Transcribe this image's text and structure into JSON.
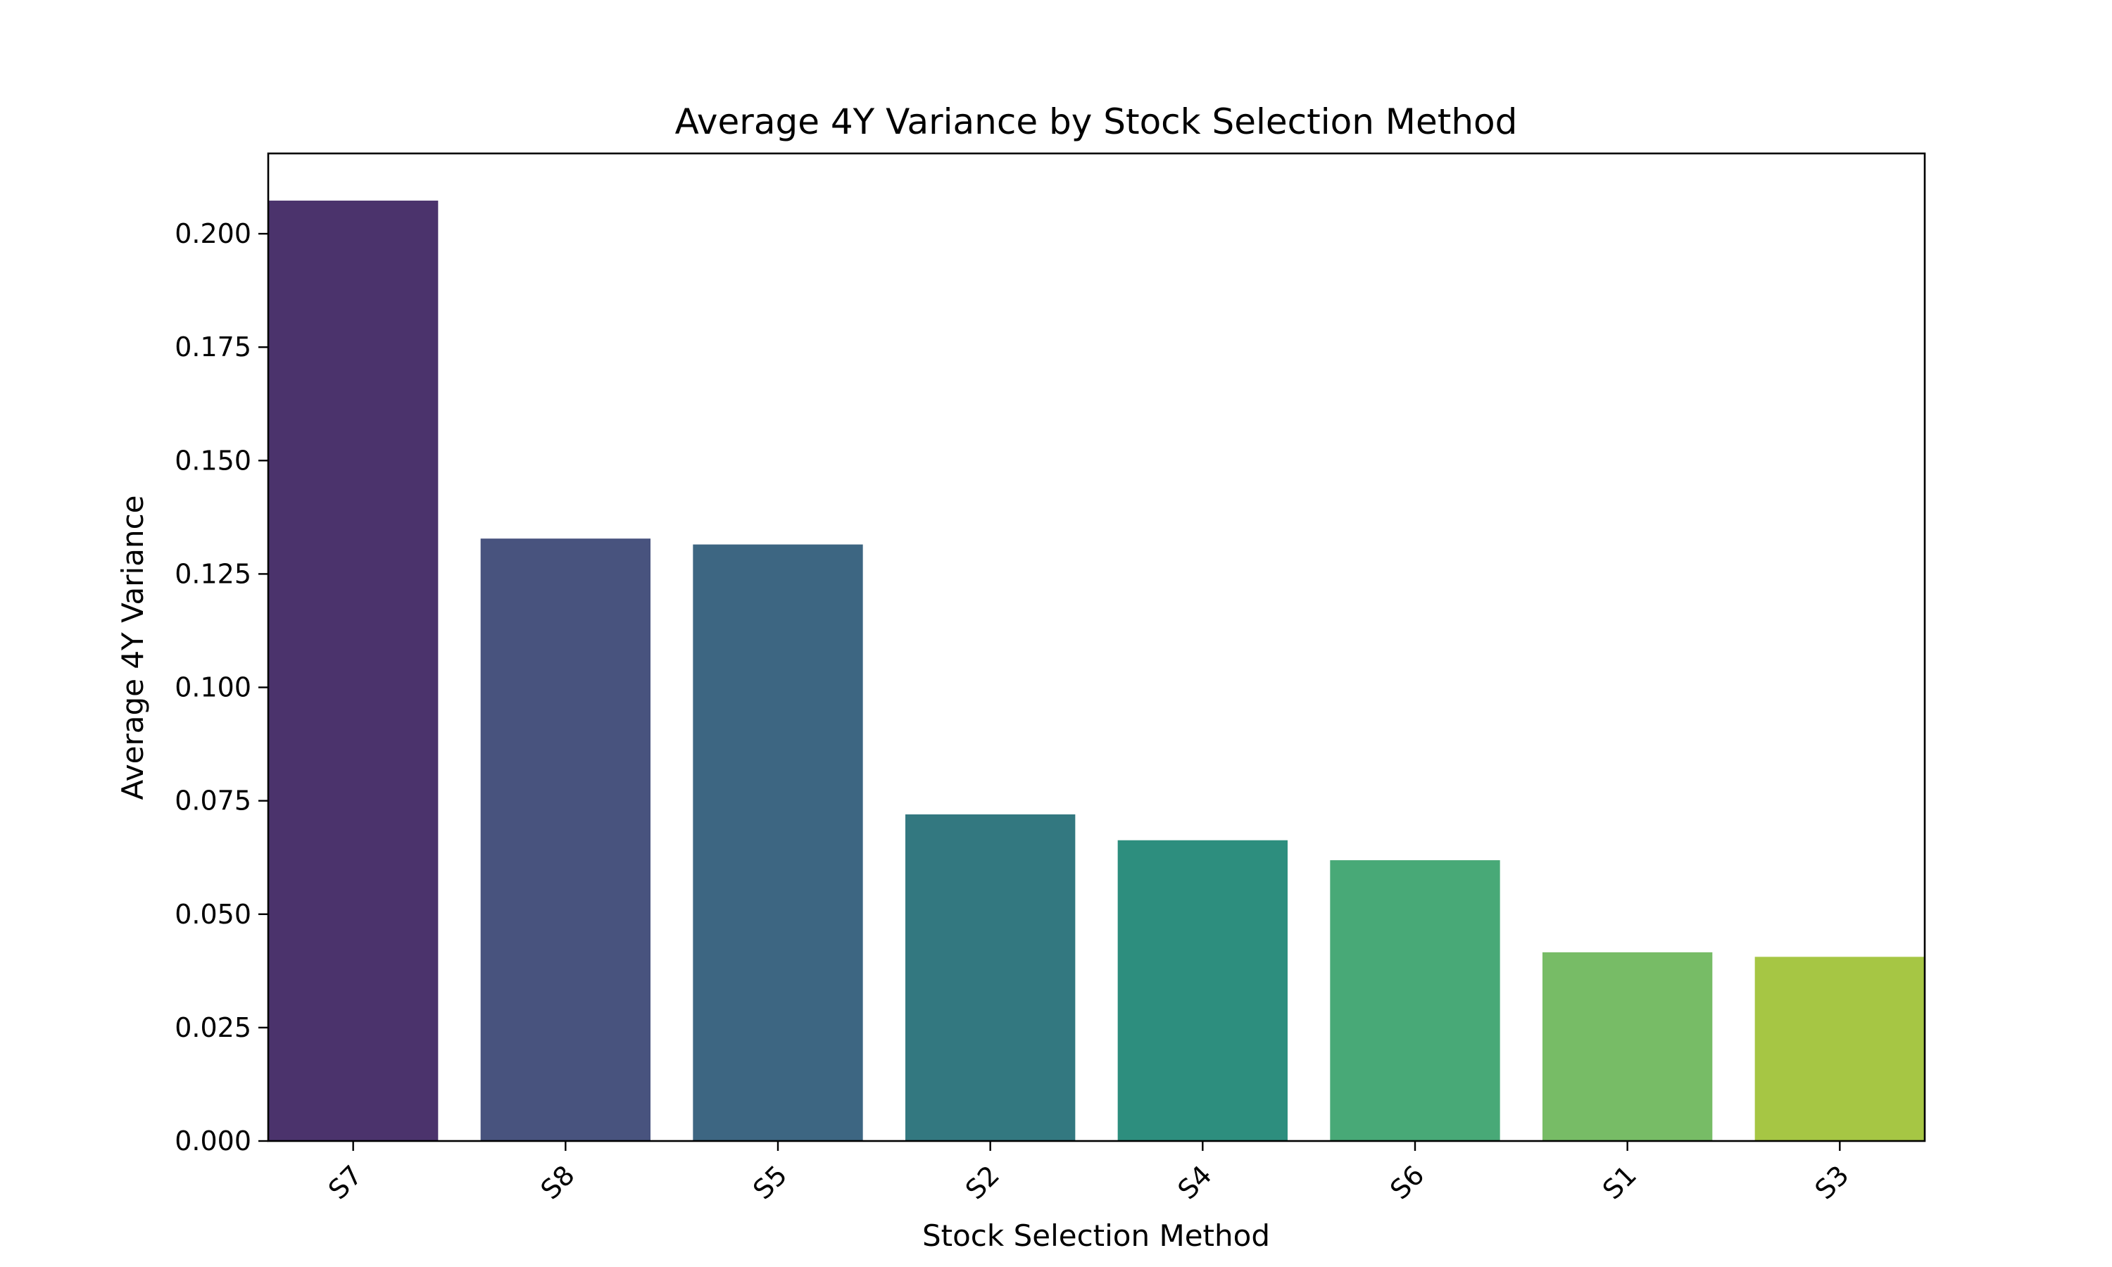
{
  "chart_data": {
    "type": "bar",
    "title": "Average 4Y Variance by Stock Selection Method",
    "xlabel": "Stock Selection Method",
    "ylabel": "Average 4Y Variance",
    "categories": [
      "S7",
      "S8",
      "S5",
      "S2",
      "S4",
      "S6",
      "S1",
      "S3"
    ],
    "values": [
      0.2073,
      0.1328,
      0.1315,
      0.072,
      0.0663,
      0.0619,
      0.0416,
      0.0406
    ],
    "colors": [
      "#4b336c",
      "#48537e",
      "#3d6682",
      "#337880",
      "#2d8e7e",
      "#48a977",
      "#77bc66",
      "#a6c644"
    ],
    "ylim": [
      0,
      0.2177
    ],
    "yticks": [
      0.0,
      0.025,
      0.05,
      0.075,
      0.1,
      0.125,
      0.15,
      0.175,
      0.2
    ],
    "ytick_labels": [
      "0.000",
      "0.025",
      "0.050",
      "0.075",
      "0.100",
      "0.125",
      "0.150",
      "0.175",
      "0.200"
    ],
    "xtick_rotation_deg": 45,
    "grid": false,
    "legend": "none"
  }
}
